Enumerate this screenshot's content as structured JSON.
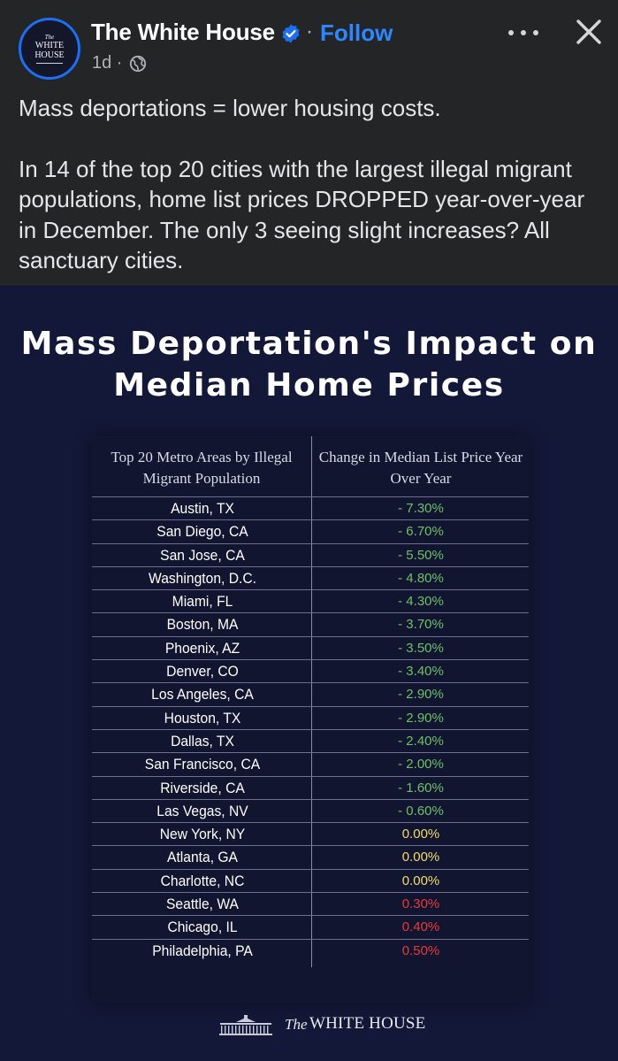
{
  "post": {
    "avatar_the": "The",
    "avatar_name": "WHITE HOUSE",
    "page_name": "The White House",
    "separator": "·",
    "follow_label": "Follow",
    "time": "1d ·",
    "caption_line1": "Mass deportations = lower housing costs.",
    "caption_line2": "In 14 of the top 20 cities with the largest illegal migrant populations, home list prices DROPPED year-over-year in December. The only 3 seeing slight increases? All sanctuary cities."
  },
  "graphic": {
    "title": "Mass Deportation's Impact on Median Home Prices",
    "col_left_header": "Top 20 Metro Areas by Illegal Migrant Population",
    "col_right_header": "Change in Median List Price Year Over Year",
    "footer_the": "The",
    "footer_name": "WHITE HOUSE"
  },
  "colors": {
    "negative": "#6fc06a",
    "zero": "#f0dc6a",
    "positive": "#e83a3a"
  },
  "chart_data": {
    "type": "table",
    "title": "Mass Deportation's Impact on Median Home Prices",
    "columns": [
      "Top 20 Metro Areas by Illegal Migrant Population",
      "Change in Median List Price Year Over Year"
    ],
    "rows": [
      {
        "city": "Austin, TX",
        "change": "- 7.30%",
        "value": -7.3
      },
      {
        "city": "San Diego, CA",
        "change": "- 6.70%",
        "value": -6.7
      },
      {
        "city": "San Jose, CA",
        "change": "- 5.50%",
        "value": -5.5
      },
      {
        "city": "Washington, D.C.",
        "change": "- 4.80%",
        "value": -4.8
      },
      {
        "city": "Miami, FL",
        "change": "- 4.30%",
        "value": -4.3
      },
      {
        "city": "Boston, MA",
        "change": "- 3.70%",
        "value": -3.7
      },
      {
        "city": "Phoenix, AZ",
        "change": "- 3.50%",
        "value": -3.5
      },
      {
        "city": "Denver, CO",
        "change": "- 3.40%",
        "value": -3.4
      },
      {
        "city": "Los Angeles, CA",
        "change": "- 2.90%",
        "value": -2.9
      },
      {
        "city": "Houston, TX",
        "change": "- 2.90%",
        "value": -2.9
      },
      {
        "city": "Dallas, TX",
        "change": "- 2.40%",
        "value": -2.4
      },
      {
        "city": "San Francisco, CA",
        "change": "- 2.00%",
        "value": -2.0
      },
      {
        "city": "Riverside, CA",
        "change": "- 1.60%",
        "value": -1.6
      },
      {
        "city": "Las Vegas, NV",
        "change": "- 0.60%",
        "value": -0.6
      },
      {
        "city": "New York, NY",
        "change": "0.00%",
        "value": 0.0
      },
      {
        "city": "Atlanta, GA",
        "change": "0.00%",
        "value": 0.0
      },
      {
        "city": "Charlotte, NC",
        "change": "0.00%",
        "value": 0.0
      },
      {
        "city": "Seattle, WA",
        "change": "0.30%",
        "value": 0.3
      },
      {
        "city": "Chicago, IL",
        "change": "0.40%",
        "value": 0.4
      },
      {
        "city": "Philadelphia, PA",
        "change": "0.50%",
        "value": 0.5
      }
    ]
  }
}
